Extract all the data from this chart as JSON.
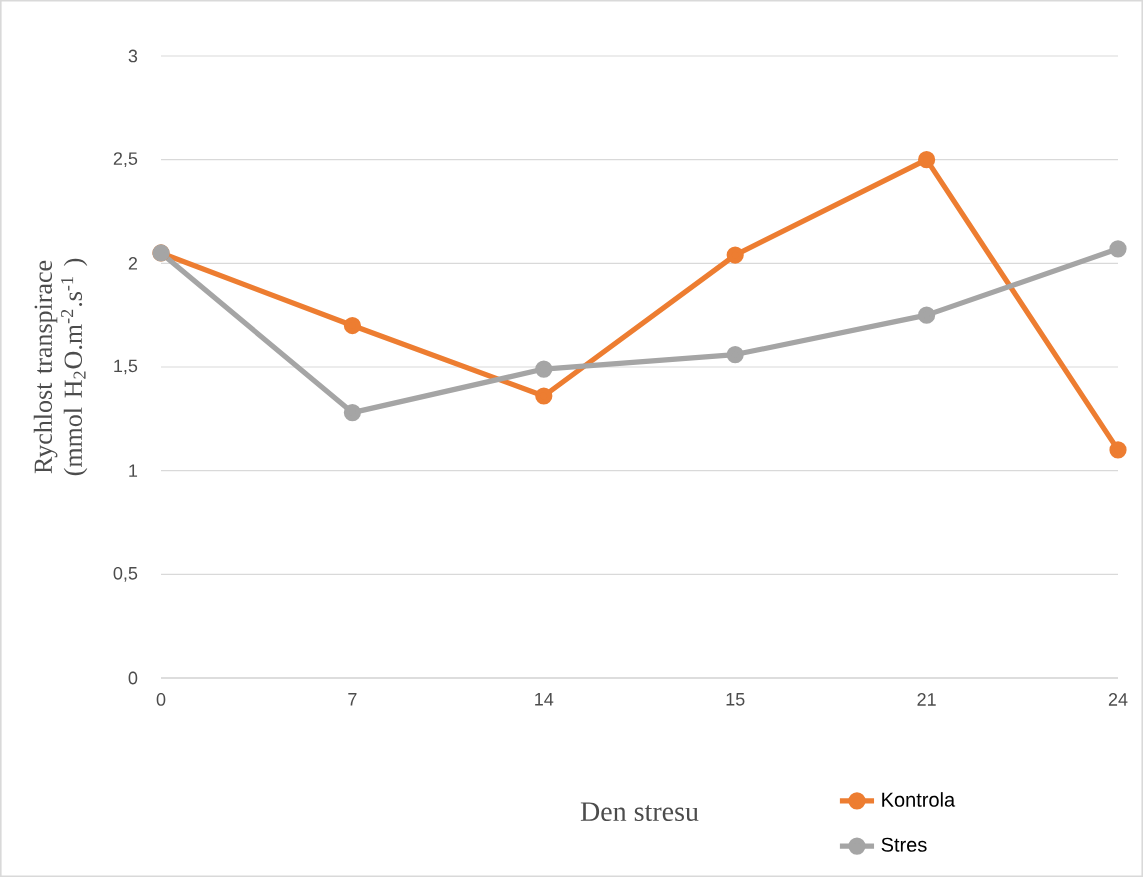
{
  "chart_data": {
    "type": "line",
    "xlabel": "Den stresu",
    "ylabel": "Rychlost transpirace (mmol H$_{2}$O.m$^{-2}$.s$^{-1}$ )",
    "categories": [
      "0",
      "7",
      "14",
      "15",
      "21",
      "24"
    ],
    "series": [
      {
        "name": "Kontrola",
        "color": "#ed7d31",
        "values": [
          2.05,
          1.7,
          1.36,
          2.04,
          2.5,
          1.1
        ]
      },
      {
        "name": "Stres",
        "color": "#a5a5a5",
        "values": [
          2.05,
          1.28,
          1.49,
          1.56,
          1.75,
          2.07
        ]
      }
    ],
    "ylim": [
      0,
      3
    ],
    "yticks": [
      0,
      {
        "value": 0.5,
        "label": "0,5"
      },
      1,
      {
        "value": 1.5,
        "label": "1,5"
      },
      2,
      {
        "value": 2.5,
        "label": "2,5"
      },
      3
    ],
    "grid": "y",
    "legend": "bottom right",
    "marker": "circle",
    "line_style": "solid"
  }
}
